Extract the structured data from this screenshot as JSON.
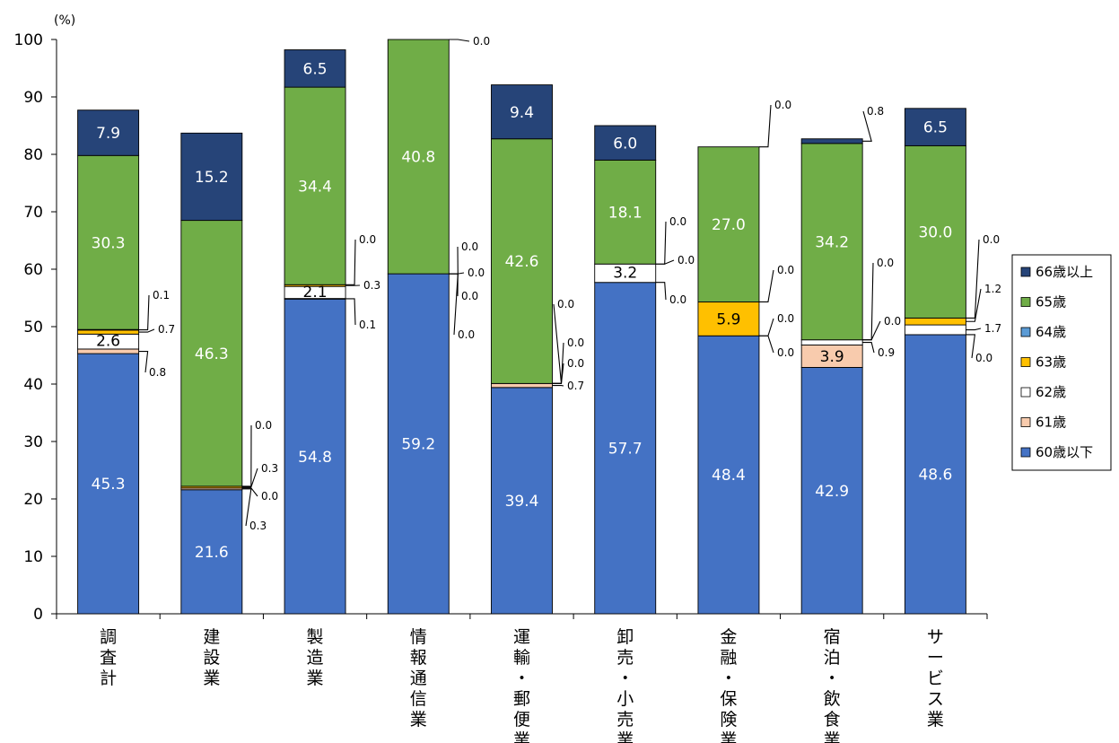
{
  "chart_data": {
    "type": "bar",
    "stacked": true,
    "y_unit": "(%)",
    "ylim": [
      0,
      100
    ],
    "yticks": [
      "0",
      "10",
      "20",
      "30",
      "40",
      "50",
      "60",
      "70",
      "80",
      "90",
      "100"
    ],
    "legend_position": "right",
    "categories": [
      "調査計",
      "建設業",
      "製造業",
      "情報通信業",
      "運輸・郵便業",
      "卸売・小売業",
      "金融・保険業",
      "宿泊・飲食業",
      "サービス業"
    ],
    "series": [
      {
        "name": "60歳以下",
        "color": "#4472c4",
        "values": [
          45.3,
          21.6,
          54.8,
          59.2,
          39.4,
          57.7,
          48.4,
          42.9,
          48.6
        ],
        "labels": [
          "45.3",
          "21.6",
          "54.8",
          "59.2",
          "39.4",
          "57.7",
          "48.4",
          "42.9",
          "48.6"
        ]
      },
      {
        "name": "61歳",
        "color": "#f8cbad",
        "values": [
          0.8,
          0.3,
          0.1,
          0.0,
          0.7,
          0.0,
          0.0,
          3.9,
          0.0
        ],
        "labels": [
          "0.8",
          "0.3",
          "0.1",
          "0.0",
          "0.7",
          "0.0",
          "0.0",
          "3.9",
          "0.0"
        ]
      },
      {
        "name": "62歳",
        "color": "#ffffff",
        "values": [
          2.6,
          0.0,
          2.1,
          0.0,
          0.0,
          3.2,
          0.0,
          0.9,
          1.7
        ],
        "labels": [
          "2.6",
          "0.0",
          "2.1",
          "0.0",
          "0.0",
          "3.2",
          "0.0",
          "0.9",
          "1.7"
        ]
      },
      {
        "name": "63歳",
        "color": "#ffc000",
        "values": [
          0.7,
          0.3,
          0.3,
          0.0,
          0.0,
          0.0,
          5.9,
          0.0,
          1.2
        ],
        "labels": [
          "0.7",
          "0.3",
          "0.3",
          "0.0",
          "0.0",
          "0.0",
          "5.9",
          "0.0",
          "1.2"
        ]
      },
      {
        "name": "64歳",
        "color": "#5b9bd5",
        "values": [
          0.1,
          0.0,
          0.0,
          0.0,
          0.0,
          0.0,
          0.0,
          0.0,
          0.0
        ],
        "labels": [
          "0.1",
          "0.0",
          "0.0",
          "0.0",
          "0.0",
          "0.0",
          "0.0",
          "0.0",
          "0.0"
        ]
      },
      {
        "name": "65歳",
        "color": "#70ad47",
        "values": [
          30.3,
          46.3,
          34.4,
          40.8,
          42.6,
          18.1,
          27.0,
          34.2,
          30.0
        ],
        "labels": [
          "30.3",
          "46.3",
          "34.4",
          "40.8",
          "42.6",
          "18.1",
          "27.0",
          "34.2",
          "30.0"
        ]
      },
      {
        "name": "66歳以上",
        "color": "#264478",
        "values": [
          7.9,
          15.2,
          6.5,
          0.0,
          9.4,
          6.0,
          0.0,
          0.8,
          6.5
        ],
        "labels": [
          "7.9",
          "15.2",
          "6.5",
          "0.0",
          "9.4",
          "6.0",
          "0.0",
          "0.8",
          "6.5"
        ]
      }
    ]
  }
}
